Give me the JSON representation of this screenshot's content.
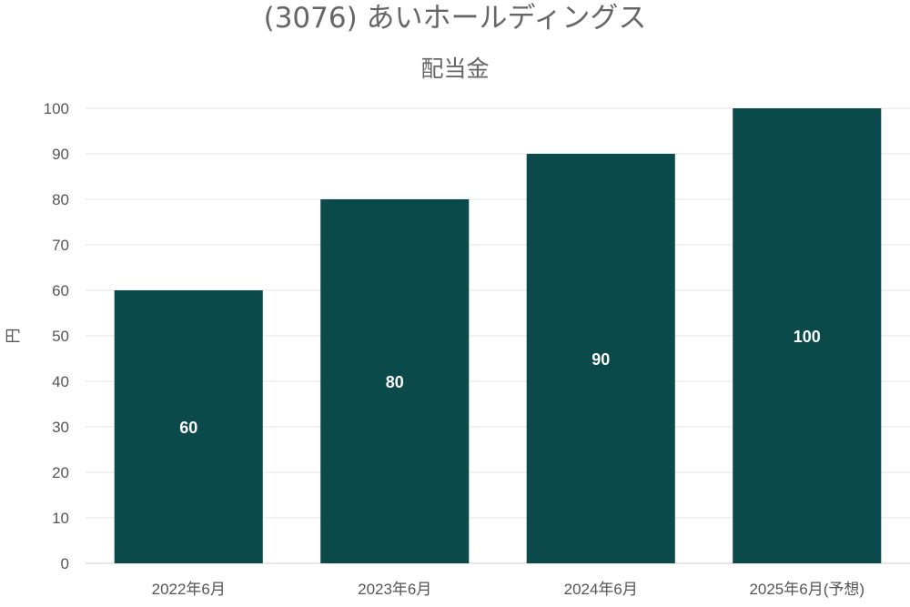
{
  "chart_data": {
    "type": "bar",
    "title": "(3076) あいホールディングス",
    "subtitle": "配当金",
    "ylabel": "円",
    "xlabel": "",
    "categories": [
      "2022年6月",
      "2023年6月",
      "2024年6月",
      "2025年6月(予想)"
    ],
    "values": [
      60,
      80,
      90,
      100
    ],
    "ylim": [
      0,
      100
    ],
    "yticks": [
      0,
      10,
      20,
      30,
      40,
      50,
      60,
      70,
      80,
      90,
      100
    ],
    "grid": true,
    "legend": "none",
    "bar_color": "#0b4a4a",
    "data_labels": true
  }
}
